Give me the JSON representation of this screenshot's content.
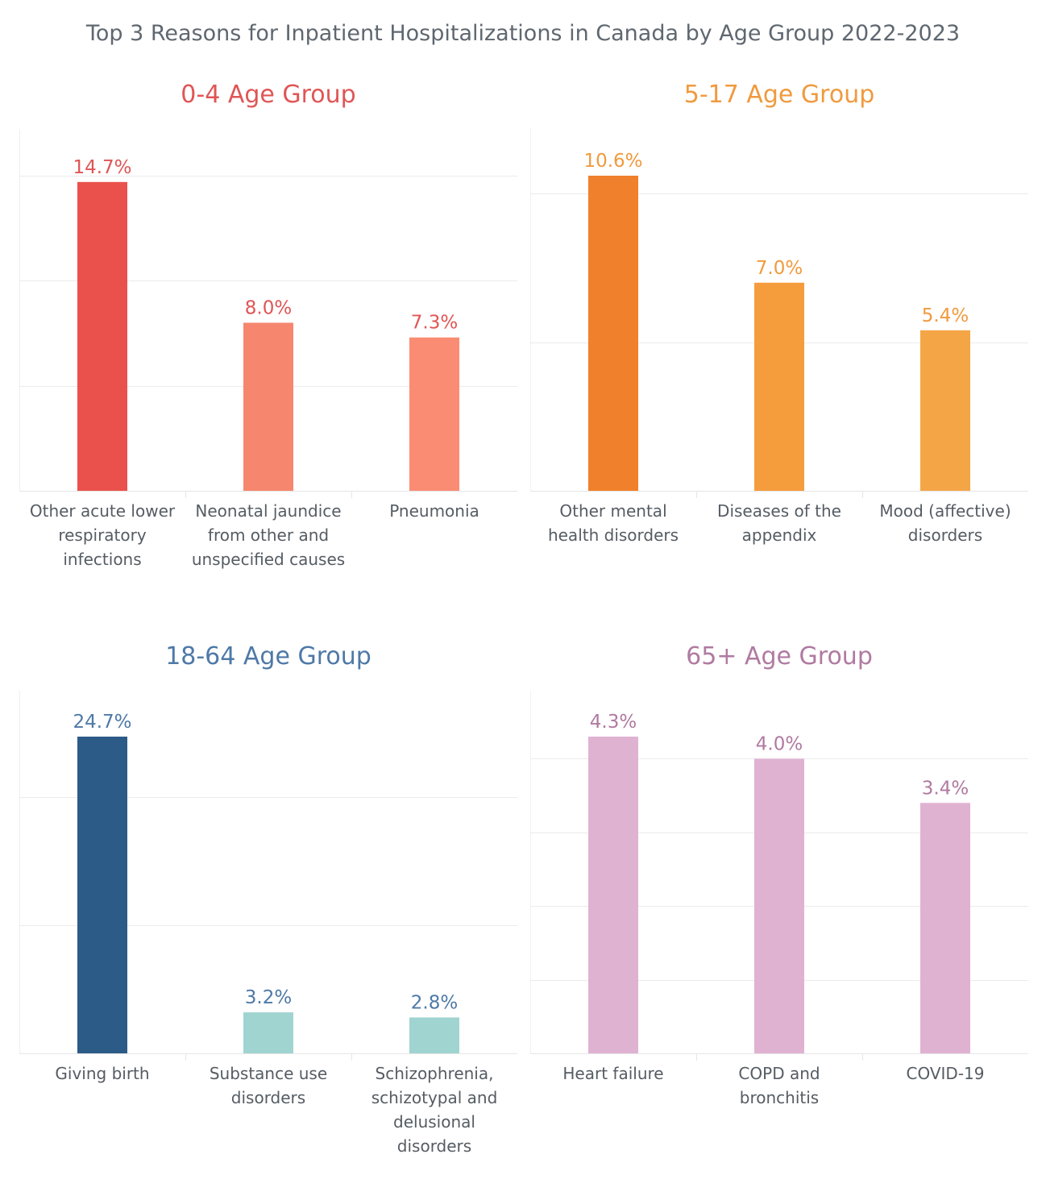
{
  "title": "Top 3 Reasons for Inpatient Hospitalizations in Canada by Age Group 2022-2023",
  "chart_data": [
    {
      "type": "bar",
      "title": "0-4 Age Group",
      "title_color": "#e05555",
      "label_color": "#e05555",
      "categories": [
        "Other acute lower respiratory infections",
        "Neonatal jaundice from other and unspecified causes",
        "Pneumonia"
      ],
      "values": [
        14.7,
        8.0,
        7.3
      ],
      "value_labels": [
        "14.7%",
        "8.0%",
        "7.3%"
      ],
      "bar_colors": [
        "#eb514c",
        "#f6866e",
        "#fa8c73"
      ],
      "ylim": [
        0,
        15
      ],
      "gridlines": [
        5,
        10,
        15
      ],
      "xlabel": "",
      "ylabel": ""
    },
    {
      "type": "bar",
      "title": "5-17 Age Group",
      "title_color": "#f09a3e",
      "label_color": "#f09a3e",
      "categories": [
        "Other mental health disorders",
        "Diseases of the appendix",
        "Mood (affective) disorders"
      ],
      "values": [
        10.6,
        7.0,
        5.4
      ],
      "value_labels": [
        "10.6%",
        "7.0%",
        "5.4%"
      ],
      "bar_colors": [
        "#f0802b",
        "#f59c3c",
        "#f4a646"
      ],
      "ylim": [
        0,
        10.6
      ],
      "gridlines": [
        5,
        10
      ],
      "xlabel": "",
      "ylabel": ""
    },
    {
      "type": "bar",
      "title": "18-64 Age Group",
      "title_color": "#4e79a7",
      "label_color": "#4e79a7",
      "categories": [
        "Giving birth",
        "Substance use disorders",
        "Schizophrenia, schizotypal and delusional disorders"
      ],
      "values": [
        24.7,
        3.2,
        2.8
      ],
      "value_labels": [
        "24.7%",
        "3.2%",
        "2.8%"
      ],
      "bar_colors": [
        "#2d5b87",
        "#a0d4d0",
        "#a0d4d0"
      ],
      "ylim": [
        0,
        24.7
      ],
      "gridlines": [
        10,
        20
      ],
      "xlabel": "",
      "ylabel": ""
    },
    {
      "type": "bar",
      "title": "65+ Age Group",
      "title_color": "#b07aa1",
      "label_color": "#b07aa1",
      "categories": [
        "Heart failure",
        "COPD and bronchitis",
        "COVID-19"
      ],
      "values": [
        4.3,
        4.0,
        3.4
      ],
      "value_labels": [
        "4.3%",
        "4.0%",
        "3.4%"
      ],
      "bar_colors": [
        "#e0b2d2",
        "#e0b2d2",
        "#e0b2d2"
      ],
      "ylim": [
        0,
        4.3
      ],
      "gridlines": [
        1,
        2,
        3,
        4
      ],
      "xlabel": "",
      "ylabel": ""
    }
  ]
}
